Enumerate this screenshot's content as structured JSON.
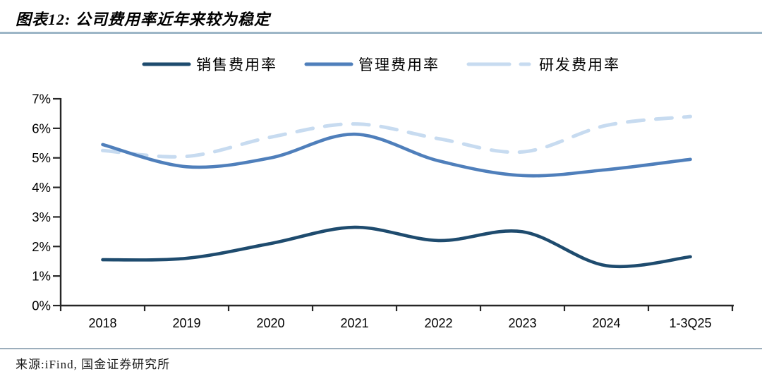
{
  "header": {
    "title": "图表12: 公司费用率近年来较为稳定"
  },
  "footer": {
    "source": "来源:iFind, 国金证券研究所"
  },
  "colors": {
    "series_sales": "#1e4b6e",
    "series_admin": "#4f7fbb",
    "series_rnd": "#c7dbf0",
    "axis": "#262626",
    "top_rule": "#9db6c7",
    "bottom_rule": "#9caebc"
  },
  "chart_data": {
    "type": "line",
    "title": "公司费用率近年来较为稳定",
    "categories": [
      "2018",
      "2019",
      "2020",
      "2021",
      "2022",
      "2023",
      "2024",
      "1-3Q25"
    ],
    "series": [
      {
        "name": "销售费用率",
        "color": "#1e4b6e",
        "style": "solid",
        "values": [
          1.55,
          1.6,
          2.1,
          2.65,
          2.2,
          2.5,
          1.35,
          1.65
        ]
      },
      {
        "name": "管理费用率",
        "color": "#4f7fbb",
        "style": "solid",
        "values": [
          5.45,
          4.7,
          5.0,
          5.8,
          4.9,
          4.4,
          4.6,
          4.95
        ]
      },
      {
        "name": "研发费用率",
        "color": "#c7dbf0",
        "style": "dashed",
        "values": [
          5.25,
          5.05,
          5.7,
          6.15,
          5.65,
          5.2,
          6.1,
          6.4
        ]
      }
    ],
    "xlabel": "",
    "ylabel": "",
    "ylim": [
      0,
      7
    ],
    "y_tick_step": 1,
    "y_tick_labels": [
      "0%",
      "1%",
      "2%",
      "3%",
      "4%",
      "5%",
      "6%",
      "7%"
    ],
    "unit": "%",
    "grid": false,
    "legend_position": "top"
  }
}
